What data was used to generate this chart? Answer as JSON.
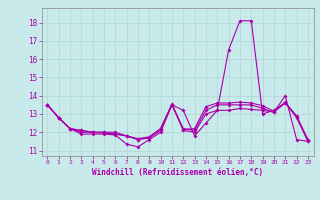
{
  "xlabel": "Windchill (Refroidissement éolien,°C)",
  "background_color": "#c8eaea",
  "line_color": "#aa00aa",
  "grid_color": "#b0d4d4",
  "xlim": [
    -0.5,
    23.5
  ],
  "ylim": [
    10.7,
    18.8
  ],
  "yticks": [
    11,
    12,
    13,
    14,
    15,
    16,
    17,
    18
  ],
  "xticks": [
    0,
    1,
    2,
    3,
    4,
    5,
    6,
    7,
    8,
    9,
    10,
    11,
    12,
    13,
    14,
    15,
    16,
    17,
    18,
    19,
    20,
    21,
    22,
    23
  ],
  "line1_x": [
    0,
    1,
    2,
    3,
    4,
    5,
    6,
    7,
    8,
    9,
    10,
    11,
    12,
    13,
    14,
    15,
    16,
    17,
    18,
    19,
    20,
    21,
    22,
    23
  ],
  "line1_y": [
    13.5,
    12.8,
    12.2,
    11.9,
    11.9,
    11.9,
    11.85,
    11.35,
    11.2,
    11.6,
    12.0,
    13.5,
    13.2,
    11.8,
    12.5,
    13.2,
    16.5,
    18.1,
    18.1,
    13.0,
    13.2,
    13.6,
    12.8,
    11.5
  ],
  "line2_x": [
    0,
    1,
    2,
    3,
    4,
    5,
    6,
    7,
    8,
    9,
    10,
    11,
    12,
    13,
    14,
    15,
    16,
    17,
    18,
    19,
    20,
    21,
    22,
    23
  ],
  "line2_y": [
    13.5,
    12.8,
    12.2,
    12.1,
    12.0,
    12.0,
    12.0,
    11.8,
    11.6,
    11.7,
    12.2,
    13.5,
    12.2,
    12.1,
    13.2,
    13.5,
    13.5,
    13.5,
    13.5,
    13.3,
    13.1,
    13.6,
    12.9,
    11.6
  ],
  "line3_x": [
    0,
    1,
    2,
    3,
    4,
    5,
    6,
    7,
    8,
    9,
    10,
    11,
    12,
    13,
    14,
    15,
    16,
    17,
    18,
    19,
    20,
    21,
    22,
    23
  ],
  "line3_y": [
    13.5,
    12.8,
    12.2,
    12.1,
    12.0,
    12.0,
    11.9,
    11.8,
    11.65,
    11.75,
    12.2,
    13.55,
    12.15,
    12.2,
    13.4,
    13.6,
    13.6,
    13.65,
    13.6,
    13.45,
    13.15,
    13.65,
    12.85,
    11.55
  ],
  "line4_x": [
    0,
    1,
    2,
    3,
    4,
    5,
    6,
    7,
    8,
    9,
    10,
    11,
    12,
    13,
    14,
    15,
    16,
    17,
    18,
    19,
    20,
    21,
    22,
    23
  ],
  "line4_y": [
    13.5,
    12.8,
    12.2,
    12.0,
    12.0,
    11.95,
    11.9,
    11.8,
    11.6,
    11.7,
    12.1,
    13.5,
    12.1,
    12.0,
    13.0,
    13.2,
    13.2,
    13.3,
    13.25,
    13.2,
    13.1,
    14.0,
    11.6,
    11.5
  ]
}
